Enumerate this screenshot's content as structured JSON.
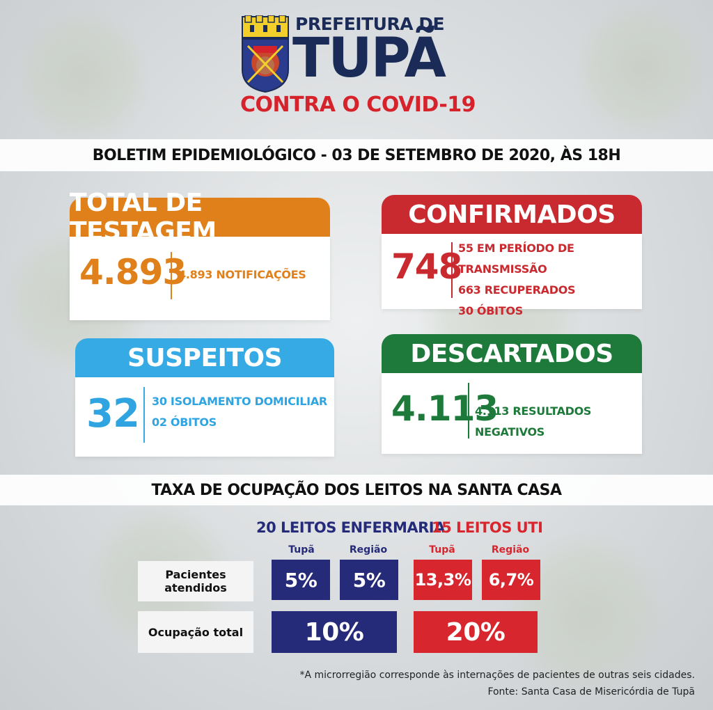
{
  "header": {
    "prefeitura": "PREFEITURA DE",
    "city": "TUPÃ",
    "subtitle": "CONTRA O COVID-19"
  },
  "bulletin_title": "BOLETIM EPIDEMIOLÓGICO - 03 DE SETEMBRO DE 2020, ÀS 18H",
  "cards": {
    "testagem": {
      "title": "TOTAL DE TESTAGEM",
      "number": "4.893",
      "lines": [
        "4.893 NOTIFICAÇÕES"
      ]
    },
    "confirmados": {
      "title": "CONFIRMADOS",
      "number": "748",
      "lines": [
        "55 EM PERÍODO DE TRANSMISSÃO",
        "663 RECUPERADOS",
        "30 ÓBITOS"
      ]
    },
    "suspeitos": {
      "title": "SUSPEITOS",
      "number": "32",
      "lines": [
        "30 ISOLAMENTO DOMICILIAR",
        "02 ÓBITOS"
      ]
    },
    "descartados": {
      "title": "DESCARTADOS",
      "number": "4.113",
      "lines": [
        "4.113 RESULTADOS NEGATIVOS"
      ]
    }
  },
  "occupancy": {
    "title": "TAXA DE OCUPAÇÃO DOS LEITOS NA SANTA CASA",
    "enfermaria_label": "20 LEITOS ENFERMARIA",
    "uti_label": "15 LEITOS UTI",
    "col_tupa": "Tupã",
    "col_regiao": "Região",
    "row_pacientes": "Pacientes atendidos",
    "row_ocupacao": "Ocupação total",
    "enf_tupa": "5%",
    "enf_regiao": "5%",
    "uti_tupa": "13,3%",
    "uti_regiao": "6,7%",
    "enf_total": "10%",
    "uti_total": "20%"
  },
  "footer": {
    "note": "*A microrregião corresponde às internações de pacientes de outras seis cidades.",
    "source": "Fonte: Santa Casa de Misericórdia de Tupã"
  },
  "colors": {
    "navy": "#1b2b57",
    "red": "#c82a2f",
    "orange": "#e0801b",
    "blue": "#36aae5",
    "green": "#1e7a3a"
  }
}
